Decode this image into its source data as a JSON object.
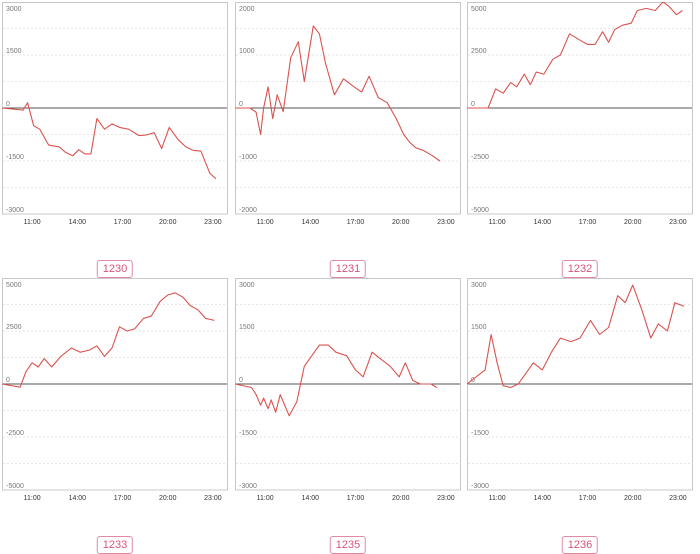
{
  "style": {
    "line_color": "#d9534f",
    "badge_color": "#d8557a"
  },
  "chart_data": [
    {
      "type": "line",
      "label": "1230",
      "ylim": [
        -3000,
        3000
      ],
      "yticks": [
        3000,
        1500,
        0,
        -1500,
        -3000
      ],
      "xticks": [
        "11:00",
        "14:00",
        "17:00",
        "20:00",
        "23:00"
      ],
      "xlim": [
        9,
        24
      ],
      "x": [
        9,
        10.4,
        10.7,
        11.1,
        11.5,
        12.1,
        12.8,
        13.2,
        13.7,
        14.1,
        14.5,
        14.9,
        15.3,
        15.8,
        16.3,
        16.8,
        17.4,
        18.1,
        18.6,
        19.1,
        19.6,
        20.1,
        20.7,
        21.2,
        21.7,
        22.2,
        22.8,
        23.2
      ],
      "y": [
        0,
        -60,
        150,
        -500,
        -600,
        -1050,
        -1100,
        -1250,
        -1350,
        -1180,
        -1300,
        -1300,
        -300,
        -600,
        -450,
        -550,
        -600,
        -780,
        -760,
        -700,
        -1150,
        -550,
        -900,
        -1100,
        -1200,
        -1220,
        -1850,
        -2000
      ]
    },
    {
      "type": "line",
      "label": "1231",
      "ylim": [
        -2000,
        2000
      ],
      "yticks": [
        2000,
        1000,
        0,
        -1000,
        -2000
      ],
      "xticks": [
        "11:00",
        "14:00",
        "17:00",
        "20:00",
        "23:00"
      ],
      "xlim": [
        9,
        24
      ],
      "x": [
        9,
        10,
        10.4,
        10.7,
        10.9,
        11.2,
        11.5,
        11.8,
        12.2,
        12.7,
        13.2,
        13.6,
        14.2,
        14.6,
        15,
        15.6,
        16.2,
        16.9,
        17.4,
        17.9,
        18.5,
        19.1,
        19.7,
        20.2,
        20.6,
        21,
        21.5,
        22.1,
        22.6
      ],
      "y": [
        0,
        0,
        -80,
        -500,
        0,
        400,
        -200,
        250,
        -70,
        950,
        1250,
        500,
        1550,
        1400,
        850,
        250,
        550,
        400,
        300,
        600,
        200,
        100,
        -200,
        -500,
        -650,
        -750,
        -800,
        -900,
        -1000
      ]
    },
    {
      "type": "line",
      "label": "1232",
      "ylim": [
        -5000,
        5000
      ],
      "yticks": [
        5000,
        2500,
        0,
        -2500,
        -5000
      ],
      "xticks": [
        "11:00",
        "14:00",
        "17:00",
        "20:00",
        "23:00"
      ],
      "xlim": [
        9,
        24
      ],
      "x": [
        9,
        10.4,
        10.9,
        11.4,
        11.9,
        12.3,
        12.8,
        13.2,
        13.6,
        14.1,
        14.7,
        15.2,
        15.8,
        16.5,
        17,
        17.5,
        18,
        18.4,
        18.8,
        19.3,
        19.9,
        20.3,
        20.9,
        21.5,
        22,
        22.4,
        22.9,
        23.3
      ],
      "y": [
        0,
        0,
        900,
        700,
        1200,
        1000,
        1600,
        1100,
        1700,
        1600,
        2300,
        2500,
        3500,
        3200,
        3000,
        3000,
        3600,
        3100,
        3700,
        3900,
        4000,
        4600,
        4700,
        4600,
        5000,
        4800,
        4400,
        4600
      ]
    },
    {
      "type": "line",
      "label": "1233",
      "ylim": [
        -5000,
        5000
      ],
      "yticks": [
        5000,
        2500,
        0,
        -2500,
        -5000
      ],
      "xticks": [
        "11:00",
        "14:00",
        "17:00",
        "20:00",
        "23:00"
      ],
      "xlim": [
        9,
        24
      ],
      "x": [
        9,
        10.2,
        10.6,
        11,
        11.4,
        11.8,
        12.3,
        12.9,
        13.6,
        14.2,
        14.8,
        15.3,
        15.8,
        16.3,
        16.8,
        17.3,
        17.8,
        18.4,
        18.9,
        19.5,
        20,
        20.5,
        21,
        21.5,
        22,
        22.5,
        23.1
      ],
      "y": [
        0,
        -150,
        600,
        1000,
        800,
        1200,
        800,
        1300,
        1700,
        1500,
        1600,
        1800,
        1300,
        1700,
        2700,
        2500,
        2600,
        3100,
        3200,
        3900,
        4200,
        4300,
        4100,
        3700,
        3500,
        3100,
        3000
      ]
    },
    {
      "type": "line",
      "label": "1235",
      "ylim": [
        -3000,
        3000
      ],
      "yticks": [
        3000,
        1500,
        0,
        -1500,
        -3000
      ],
      "xticks": [
        "11:00",
        "14:00",
        "17:00",
        "20:00",
        "23:00"
      ],
      "xlim": [
        9,
        24
      ],
      "x": [
        9,
        10.1,
        10.4,
        10.7,
        10.9,
        11.2,
        11.4,
        11.7,
        12,
        12.6,
        13.1,
        13.6,
        14.1,
        14.6,
        15.2,
        15.7,
        16.4,
        17,
        17.5,
        18.1,
        18.7,
        19.3,
        19.9,
        20.3,
        20.8,
        21.3,
        22,
        22.4
      ],
      "y": [
        0,
        -100,
        -300,
        -600,
        -400,
        -700,
        -450,
        -800,
        -300,
        -900,
        -500,
        500,
        800,
        1100,
        1100,
        900,
        800,
        400,
        200,
        900,
        700,
        500,
        200,
        600,
        100,
        0,
        0,
        -100
      ]
    },
    {
      "type": "line",
      "label": "1236",
      "ylim": [
        -3000,
        3000
      ],
      "yticks": [
        3000,
        1500,
        0,
        -1500,
        -3000
      ],
      "xticks": [
        "11:00",
        "14:00",
        "17:00",
        "20:00",
        "23:00"
      ],
      "xlim": [
        9,
        24
      ],
      "x": [
        9,
        10.2,
        10.6,
        11,
        11.4,
        11.9,
        12.4,
        12.9,
        13.4,
        14,
        14.6,
        15.2,
        15.9,
        16.5,
        17.2,
        17.8,
        18.4,
        19,
        19.5,
        20,
        20.6,
        21.2,
        21.7,
        22.3,
        22.8,
        23.4
      ],
      "y": [
        0,
        400,
        1400,
        600,
        -50,
        -100,
        0,
        300,
        600,
        400,
        900,
        1300,
        1200,
        1300,
        1800,
        1400,
        1600,
        2500,
        2300,
        2800,
        2100,
        1300,
        1700,
        1500,
        2300,
        2200
      ]
    }
  ]
}
